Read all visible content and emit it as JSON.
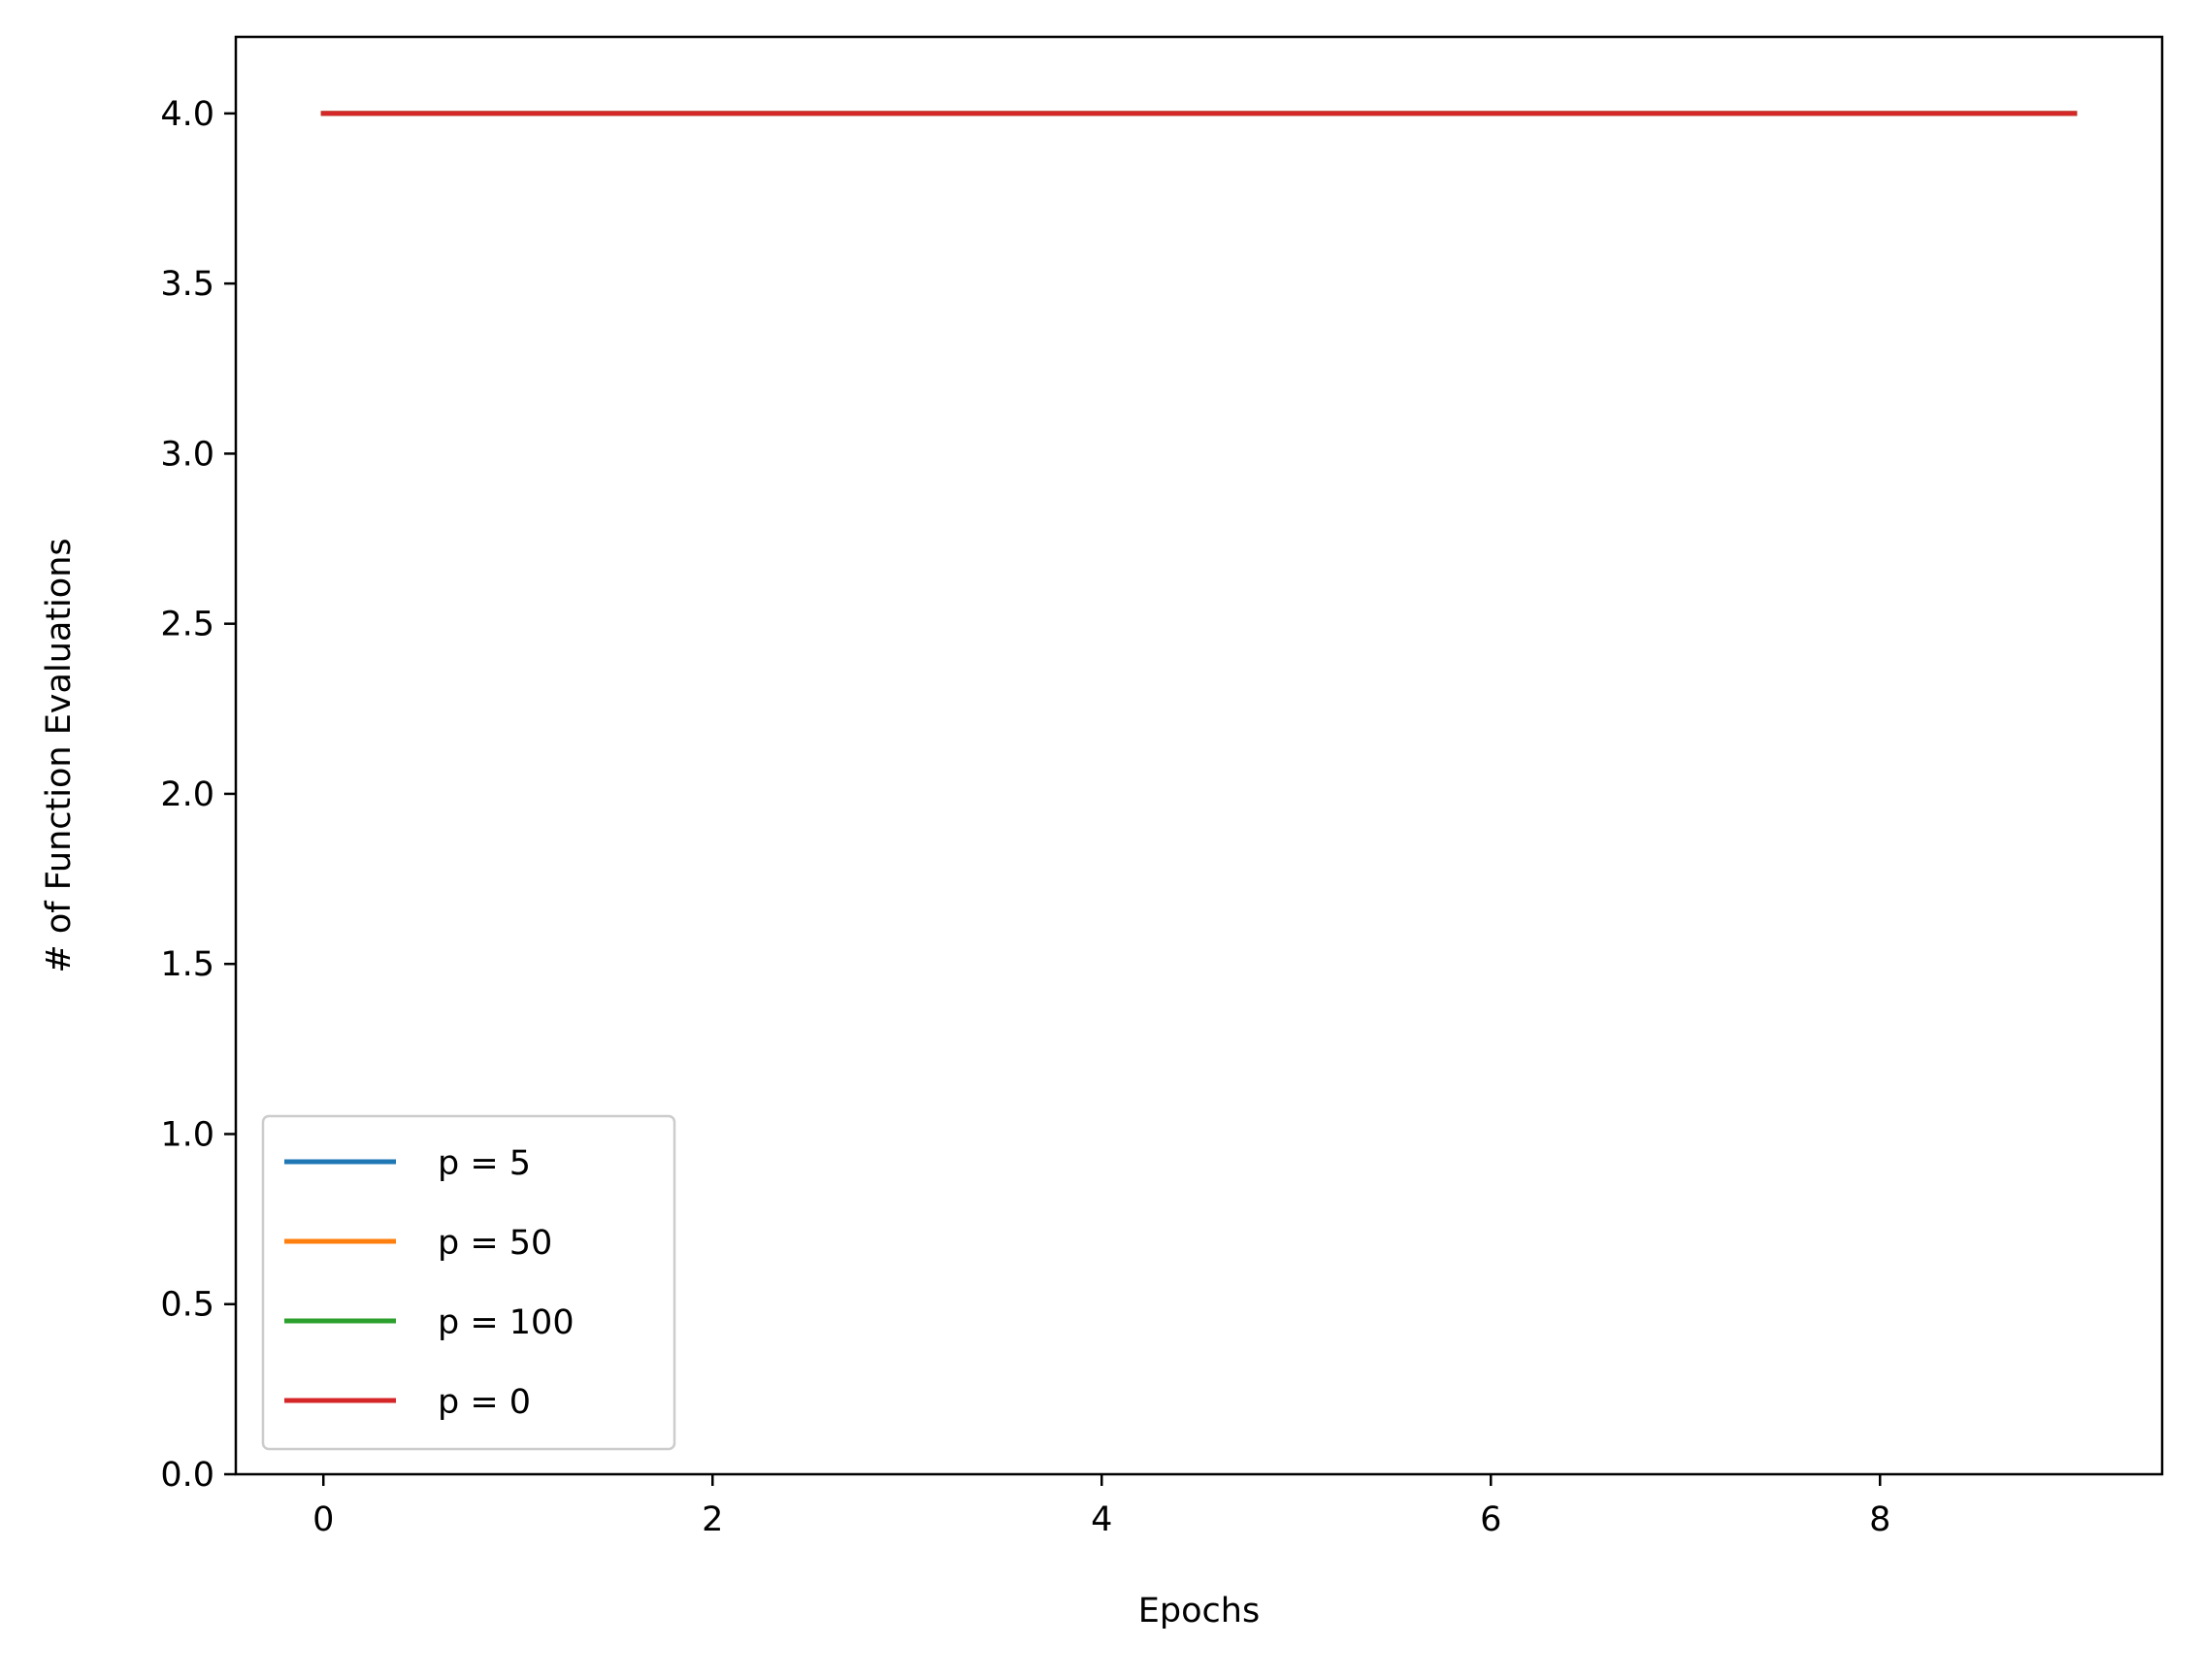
{
  "chart_data": {
    "type": "line",
    "title": "",
    "xlabel": "Epochs",
    "ylabel": "# of Function Evaluations",
    "xlim": [
      -0.45,
      9.45
    ],
    "ylim": [
      0.0,
      4.225
    ],
    "x_ticks": [
      0,
      2,
      4,
      6,
      8
    ],
    "x_tick_labels": [
      "0",
      "2",
      "4",
      "6",
      "8"
    ],
    "y_ticks": [
      0.0,
      0.5,
      1.0,
      1.5,
      2.0,
      2.5,
      3.0,
      3.5,
      4.0
    ],
    "y_tick_labels": [
      "0.0",
      "0.5",
      "1.0",
      "1.5",
      "2.0",
      "2.5",
      "3.0",
      "3.5",
      "4.0"
    ],
    "grid": false,
    "legend_position": "lower-left",
    "x": [
      0,
      1,
      2,
      3,
      4,
      5,
      6,
      7,
      8,
      9
    ],
    "series": [
      {
        "name": "p = 5",
        "color": "#1f77b4",
        "values": [
          4,
          4,
          4,
          4,
          4,
          4,
          4,
          4,
          4,
          4
        ]
      },
      {
        "name": "p = 50",
        "color": "#ff7f0e",
        "values": [
          4,
          4,
          4,
          4,
          4,
          4,
          4,
          4,
          4,
          4
        ]
      },
      {
        "name": "p = 100",
        "color": "#2ca02c",
        "values": [
          4,
          4,
          4,
          4,
          4,
          4,
          4,
          4,
          4,
          4
        ]
      },
      {
        "name": "p = 0",
        "color": "#d62728",
        "values": [
          4,
          4,
          4,
          4,
          4,
          4,
          4,
          4,
          4,
          4
        ]
      }
    ]
  }
}
